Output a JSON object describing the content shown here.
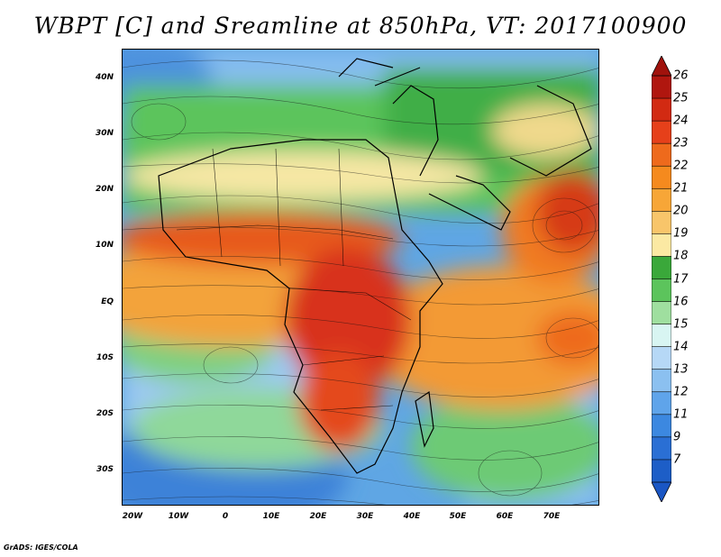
{
  "title": "WBPT [C] and Sreamline at 850hPa, VT: 2017100900",
  "credit": "GrADS: IGES/COLA",
  "lat_labels": [
    "40N",
    "30N",
    "20N",
    "10N",
    "EQ",
    "10S",
    "20S",
    "30S"
  ],
  "lon_labels": [
    "20W",
    "10W",
    "0",
    "10E",
    "20E",
    "30E",
    "40E",
    "50E",
    "60E",
    "70E"
  ],
  "colorbar": {
    "labels": [
      "26",
      "25",
      "24",
      "23",
      "22",
      "21",
      "20",
      "19",
      "18",
      "17",
      "16",
      "15",
      "14",
      "13",
      "12",
      "11",
      "9",
      "7"
    ],
    "colors": [
      "#b0160f",
      "#d22a12",
      "#e6401a",
      "#ee6a1c",
      "#f58a1e",
      "#f7a637",
      "#f8c56a",
      "#fbe9a3",
      "#3aa83a",
      "#5cc45c",
      "#9fdf9f",
      "#d8f5f2",
      "#b6d8f6",
      "#8bc0f0",
      "#5fa4ea",
      "#3c88e0",
      "#2a6fd4",
      "#1d5ec7"
    ],
    "top_arrow_color": "#a0120c",
    "bottom_arrow_color": "#1a56c4"
  }
}
